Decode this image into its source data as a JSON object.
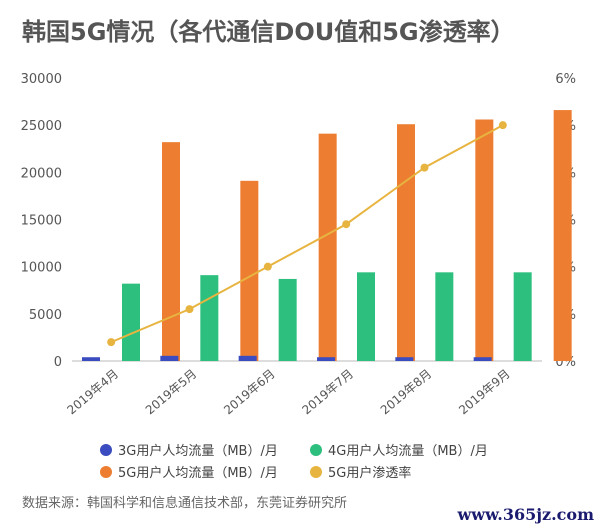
{
  "title": "韩国5G情况（各代通信DOU值和5G渗透率）",
  "source": "数据来源：韩国科学和信息通信技术部，东莞证券研究所",
  "watermark": "www.365jz.com",
  "chart_data": {
    "type": "bar",
    "title": "韩国5G情况（各代通信DOU值和5G渗透率）",
    "categories": [
      "2019年4月",
      "2019年5月",
      "2019年6月",
      "2019年7月",
      "2019年8月",
      "2019年9月"
    ],
    "y_left": {
      "min": 0,
      "max": 30000,
      "ticks": [
        0,
        5000,
        10000,
        15000,
        20000,
        25000,
        30000
      ]
    },
    "y_right": {
      "min": 0,
      "max": 6,
      "ticks": [
        "0%",
        "1%",
        "2%",
        "3%",
        "4%",
        "5%",
        "6%"
      ]
    },
    "series": [
      {
        "name": "3G用户人均流量（MB）/月",
        "type": "bar",
        "axis": "left",
        "color": "#3b4cc0",
        "values": [
          400,
          550,
          550,
          400,
          400,
          400
        ]
      },
      {
        "name": "4G用户人均流量（MB）/月",
        "type": "bar",
        "axis": "left",
        "color": "#2dbf7e",
        "values": [
          8200,
          9100,
          8700,
          9400,
          9400,
          9400
        ]
      },
      {
        "name": "5G用户人均流量（MB）/月",
        "type": "bar",
        "axis": "left",
        "color": "#ed7d31",
        "values": [
          23200,
          19100,
          24100,
          25100,
          25600,
          26600
        ]
      },
      {
        "name": "5G用户渗透率",
        "type": "line",
        "axis": "right",
        "color": "#e8b440",
        "values": [
          0.4,
          1.1,
          2.0,
          2.9,
          4.1,
          5.0
        ]
      }
    ],
    "legend_position": "bottom",
    "grid": false
  }
}
